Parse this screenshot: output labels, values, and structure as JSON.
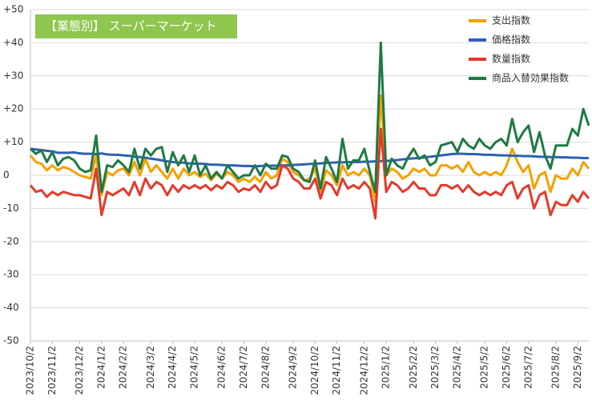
{
  "chart_data": {
    "type": "line",
    "title": "【業態別】 スーパーマーケット",
    "categories": [
      "2023/10/2",
      null,
      null,
      null,
      "2023/11/2",
      null,
      null,
      null,
      null,
      "2023/12/2",
      null,
      null,
      null,
      "2024/1/2",
      null,
      null,
      null,
      "2024/2/2",
      null,
      null,
      null,
      null,
      "2024/3/2",
      null,
      null,
      null,
      "2024/4/2",
      null,
      null,
      null,
      "2024/5/2",
      null,
      null,
      null,
      null,
      "2024/6/2",
      null,
      null,
      null,
      "2024/7/2",
      null,
      null,
      null,
      "2024/8/2",
      null,
      null,
      null,
      null,
      "2024/9/2",
      null,
      null,
      null,
      "2024/10/2",
      null,
      null,
      null,
      "2024/11/2",
      null,
      null,
      null,
      null,
      "2024/12/2",
      null,
      null,
      null,
      "2025/1/2",
      null,
      null,
      null,
      null,
      "2025/2/2",
      null,
      null,
      null,
      "2025/3/2",
      null,
      null,
      null,
      "2025/4/2",
      null,
      null,
      null,
      null,
      "2025/5/2",
      null,
      null,
      null,
      "2025/6/2",
      null,
      null,
      null,
      "2025/7/2",
      null,
      null,
      null,
      null,
      "2025/8/2",
      null,
      null,
      null,
      "2025/9/2",
      null,
      null
    ],
    "series": [
      {
        "name": "支出指数",
        "color": "#f5a000",
        "values": [
          6,
          4,
          3.5,
          1.5,
          3,
          1.5,
          2.5,
          2,
          1,
          0,
          -0.5,
          -1,
          6,
          -6,
          1,
          0,
          1.5,
          2,
          0,
          4,
          0,
          5,
          1,
          3,
          1,
          -1,
          2,
          -1,
          2,
          0,
          1,
          -0.5,
          0.5,
          -1.5,
          0.5,
          -1,
          1,
          0,
          -2,
          -1,
          -2,
          -0.5,
          -2,
          1,
          -1,
          0,
          5,
          4,
          1,
          0,
          -1.5,
          -1,
          2,
          -5,
          1.5,
          0,
          -3,
          3,
          0,
          1,
          0,
          2,
          0,
          -8,
          24,
          0,
          2,
          1,
          -1,
          0,
          2,
          1,
          2,
          0,
          0,
          3,
          3,
          2,
          3,
          1,
          4,
          1,
          0,
          1,
          0,
          1,
          0,
          3,
          8,
          4,
          1,
          3,
          -4,
          0,
          1,
          -5,
          0,
          -1,
          -1,
          2,
          0,
          4,
          2
        ]
      },
      {
        "name": "価格指数",
        "color": "#2e5fb5",
        "values": [
          8,
          7.8,
          7.6,
          7.4,
          7.2,
          6.8,
          6.8,
          6.8,
          6.9,
          6.6,
          6.5,
          6.5,
          6.4,
          6.6,
          6.3,
          6.2,
          6.2,
          6,
          5.9,
          5.6,
          5.5,
          5.3,
          5,
          4.8,
          4.5,
          4.2,
          4,
          3.8,
          3.8,
          3.6,
          3.5,
          3.5,
          3.4,
          3.2,
          3.2,
          3.1,
          3,
          3,
          2.9,
          2.8,
          2.8,
          2.7,
          2.8,
          2.9,
          2.9,
          2.9,
          3,
          3,
          3.1,
          3.2,
          3.3,
          3.4,
          3.5,
          3.6,
          3.7,
          3.8,
          3.9,
          3.9,
          4,
          4,
          4,
          4.1,
          4.1,
          4.2,
          4.3,
          4.3,
          4.5,
          4.6,
          4.8,
          5,
          5.1,
          5.2,
          5.4,
          5.6,
          5.8,
          6,
          6.2,
          6.4,
          6.5,
          6.5,
          6.4,
          6.4,
          6.3,
          6.2,
          6.2,
          6.1,
          6,
          6,
          5.9,
          5.9,
          5.8,
          5.8,
          5.7,
          5.6,
          5.6,
          5.5,
          5.5,
          5.4,
          5.4,
          5.3,
          5.3,
          5.2,
          5.2
        ]
      },
      {
        "name": "数量指数",
        "color": "#e33b2b",
        "values": [
          -3,
          -5,
          -4.5,
          -6.5,
          -5,
          -6,
          -5,
          -5.5,
          -6,
          -6,
          -6.5,
          -7,
          2,
          -12,
          -5,
          -6,
          -5,
          -4,
          -6,
          -2,
          -6,
          -1,
          -4,
          -2,
          -3,
          -6,
          -3,
          -5,
          -3,
          -4,
          -3,
          -4,
          -3,
          -4.5,
          -3,
          -4,
          -2,
          -3,
          -5,
          -4,
          -4.5,
          -3,
          -5,
          -2,
          -4,
          -3,
          3,
          2,
          -1,
          -2,
          -4,
          -4,
          -1,
          -7,
          -2,
          -3,
          -6,
          -1,
          -4,
          -3,
          -4,
          -2,
          -4,
          -13,
          14,
          -5,
          -2,
          -3,
          -5,
          -4,
          -2,
          -4,
          -4,
          -6,
          -6,
          -3,
          -3,
          -4,
          -3,
          -5,
          -3,
          -5,
          -6,
          -5,
          -6,
          -5,
          -6,
          -3,
          -2,
          -7,
          -4,
          -3,
          -10,
          -6,
          -5,
          -12,
          -8,
          -9,
          -9,
          -6,
          -8,
          -5,
          -7
        ]
      },
      {
        "name": "商品入替効果指数",
        "color": "#1f7a43",
        "values": [
          8,
          6.5,
          7.5,
          4,
          7,
          3,
          5,
          5.5,
          4.5,
          2,
          1,
          1.5,
          12,
          -5,
          3,
          2.5,
          4.5,
          3,
          1,
          8,
          2,
          8,
          6,
          8,
          8.5,
          1,
          7,
          3,
          6,
          1,
          6,
          0,
          3,
          -1,
          1,
          -1,
          3,
          1,
          -1,
          0,
          0,
          3,
          0,
          3.5,
          2,
          2,
          6,
          5.5,
          2,
          1,
          -1.5,
          -2,
          4.5,
          -4,
          5.5,
          2,
          -2,
          11,
          2,
          4.5,
          4.5,
          8,
          1,
          -5,
          40,
          0,
          5,
          3,
          2,
          5.5,
          8,
          5,
          6,
          3,
          4,
          9,
          9.5,
          10,
          7,
          11,
          9,
          8,
          11,
          9,
          8,
          10,
          11,
          9,
          17,
          10,
          13,
          15,
          7,
          13,
          6,
          2,
          9,
          9,
          9,
          14,
          12,
          20,
          15
        ]
      }
    ],
    "ylim": [
      -50,
      50
    ],
    "yticks": [
      {
        "value": 50,
        "label": "+50"
      },
      {
        "value": 40,
        "label": "+40"
      },
      {
        "value": 30,
        "label": "+30"
      },
      {
        "value": 20,
        "label": "+20"
      },
      {
        "value": 10,
        "label": "+10"
      },
      0,
      -10,
      -20,
      -30,
      -40,
      -50
    ],
    "grid": true,
    "legend": "top-right"
  }
}
